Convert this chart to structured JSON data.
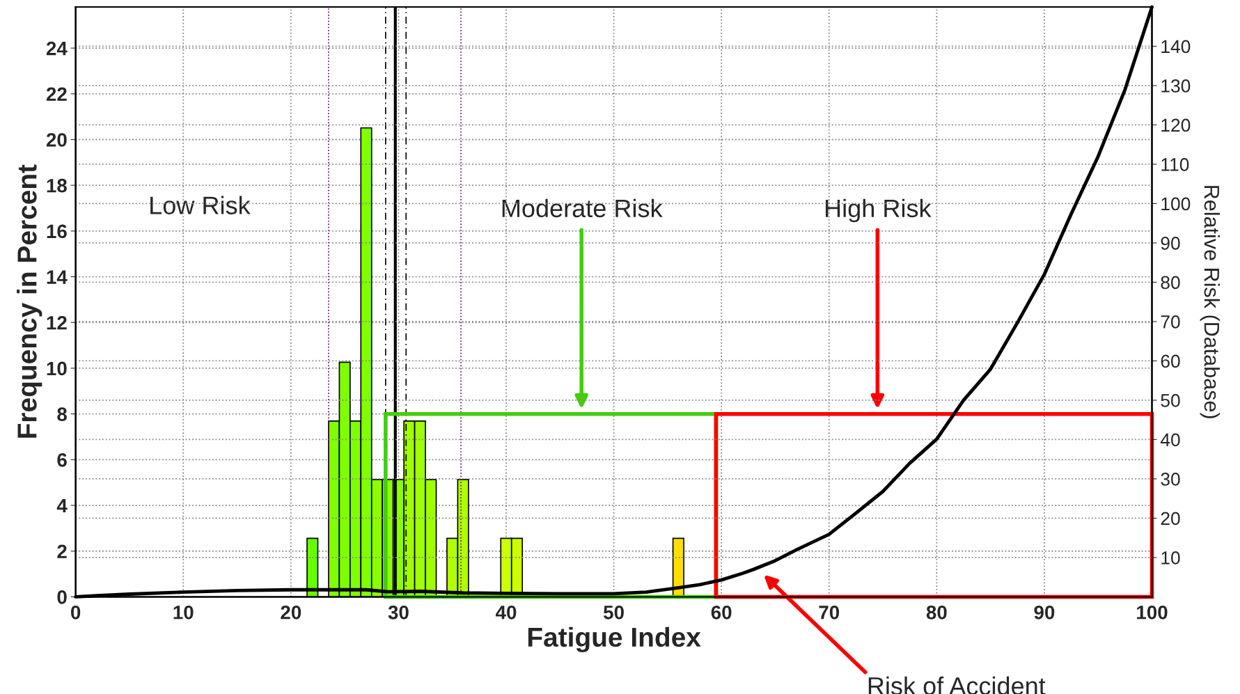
{
  "chart_data": {
    "type": "histogram",
    "xlabel": "Fatigue Index",
    "ylabel": "Frequency in Percent",
    "y2label": "Relative Risk (Database)",
    "bins": [
      21.5,
      22.5,
      23.5,
      24.5,
      25.5,
      26.5,
      27.5,
      28.5,
      29.5,
      30.5,
      31.5,
      32.5,
      33.5,
      34.5,
      35.5,
      36.5,
      37.5,
      38.5,
      39.5,
      40.5,
      41.5,
      42.5,
      43.5,
      44.5,
      45.5,
      46.5,
      47.5,
      48.5,
      49.5,
      50.5,
      51.5,
      52.5,
      53.5,
      54.5,
      55.5,
      56.5
    ],
    "values": [
      2.56,
      0,
      7.69,
      10.26,
      7.69,
      20.51,
      5.13,
      5.13,
      5.13,
      7.69,
      7.69,
      5.13,
      0,
      2.56,
      5.13,
      0,
      0,
      0,
      2.56,
      2.56,
      0,
      0,
      0,
      0,
      0,
      0,
      0,
      0,
      0,
      0,
      0,
      0,
      0,
      0,
      2.56
    ],
    "colors": [
      "#66ff00",
      "#70ff00",
      "#80ff00",
      "#80ff00",
      "#80ff00",
      "#80ff00",
      "#8cff00",
      "#8cff00",
      "#8cff00",
      "#a0ff00",
      "#a0ff00",
      "#a0ff00",
      "#a8ff00",
      "#b0ff00",
      "#b0ff00",
      "#b8ff00",
      "#bbff00",
      "#c0ff00",
      "#ccff00",
      "#ccff00",
      "#d0ff00",
      "#d4ff00",
      "#d8ff00",
      "#dcff00",
      "#e0ff00",
      "#e4f800",
      "#e8f000",
      "#ecec00",
      "#f0e800",
      "#f4e400",
      "#f8e000",
      "#fadf00",
      "#fcdf00",
      "#fedf00",
      "#ffdf00"
    ],
    "series": [
      {
        "type": "line",
        "axis": "y2",
        "color": "#000000",
        "x": [
          0,
          2,
          5,
          10,
          15,
          20,
          27,
          29,
          32,
          36,
          40,
          45,
          50,
          53,
          56,
          58,
          60,
          62,
          63,
          65,
          67,
          70,
          72.5,
          75,
          77.5,
          80,
          82.5,
          85,
          87.5,
          90,
          92.5,
          95,
          97.5,
          100
        ],
        "values": [
          0,
          0.3,
          0.7,
          1.2,
          1.6,
          1.8,
          1.8,
          1.3,
          1.4,
          1.0,
          0.9,
          0.8,
          0.8,
          1.2,
          2.3,
          3.1,
          4.3,
          6.0,
          7.0,
          9.2,
          12,
          15.9,
          21.3,
          26.8,
          34,
          40.1,
          50,
          57.9,
          69.7,
          82,
          97.4,
          112,
          129,
          150
        ]
      }
    ],
    "xlim": [
      0,
      100
    ],
    "xticks": [
      0,
      10,
      20,
      30,
      40,
      50,
      60,
      70,
      80,
      90,
      100
    ],
    "ylim": [
      0,
      25.8
    ],
    "yticks": [
      0,
      2,
      4,
      6,
      8,
      10,
      12,
      14,
      16,
      18,
      20,
      22,
      24
    ],
    "y2lim": [
      0,
      150
    ],
    "y2ticks": [
      10,
      20,
      30,
      40,
      50,
      60,
      70,
      80,
      90,
      100,
      110,
      120,
      130,
      140
    ],
    "grid": true,
    "ref_lines": [
      {
        "axis": "x",
        "value": 23.5,
        "color": "#660066",
        "line_style": "dotted"
      },
      {
        "axis": "x",
        "value": 28.8,
        "color": "#000000",
        "line_style": "dashed"
      },
      {
        "axis": "x",
        "value": 29.7,
        "color": "#000000",
        "line_style": "solid"
      },
      {
        "axis": "x",
        "value": 30.7,
        "color": "#000000",
        "line_style": "dashed"
      },
      {
        "axis": "x",
        "value": 35.8,
        "color": "#660066",
        "line_style": "dotted"
      }
    ],
    "annotations": [
      "Low Risk",
      "Moderate Risk",
      "High Risk",
      "Risk of Accident"
    ]
  }
}
